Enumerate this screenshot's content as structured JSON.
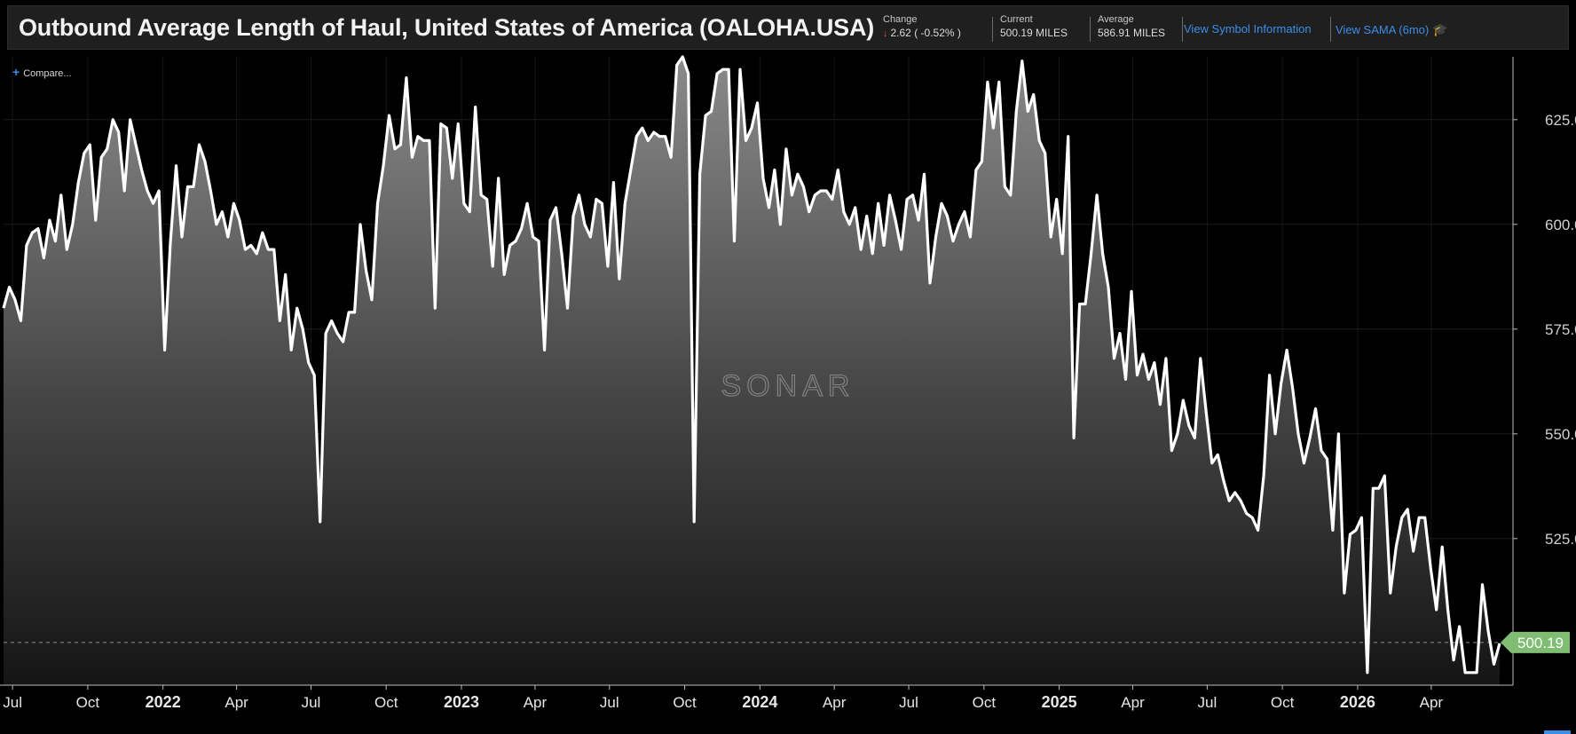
{
  "header": {
    "title": "Outbound Average Length of Haul, United States of America (OALOHA.USA)",
    "change_label": "Change",
    "change_value": "2.62 ( -0.52% )",
    "current_label": "Current",
    "current_value": "500.19 MILES",
    "average_label": "Average",
    "average_value": "586.91 MILES",
    "link_symbol": "View Symbol Information",
    "link_sama": "View SAMA (6mo)",
    "sama_icon": "graduation-cap-icon"
  },
  "compare_label": "Compare...",
  "watermark": "SONAR",
  "chart_data": {
    "type": "line",
    "title": "Outbound Average Length of Haul, United States of America (OALOHA.USA)",
    "unit": "MILES",
    "ylim": [
      490,
      640
    ],
    "yticks": [
      "625.00",
      "600.00",
      "575.00",
      "550.00",
      "525.00"
    ],
    "ytick_values": [
      625,
      600,
      575,
      550,
      525
    ],
    "xtick_labels": [
      "Jul",
      "Oct",
      "2022",
      "Apr",
      "Jul",
      "Oct",
      "2023",
      "Apr",
      "Jul",
      "Oct",
      "2024",
      "Apr",
      "Jul",
      "Oct",
      "2025",
      "Apr",
      "Jul",
      "Oct",
      "2026",
      "Apr"
    ],
    "xtick_dates": [
      "2021-07-01",
      "2021-10-01",
      "2022-01-01",
      "2022-04-01",
      "2022-07-01",
      "2022-10-01",
      "2023-01-01",
      "2023-04-01",
      "2023-07-01",
      "2023-10-01",
      "2024-01-01",
      "2024-04-01",
      "2024-07-01",
      "2024-10-01",
      "2025-01-01",
      "2025-04-01",
      "2025-07-01",
      "2025-10-01",
      "2026-01-01",
      "2026-04-01"
    ],
    "x_start": "2021-06-20",
    "x_end": "2026-07-10",
    "current_value": 500.19,
    "current_label": "500.19",
    "grid": true,
    "series": [
      {
        "values": [
          580,
          585,
          582,
          577,
          595,
          598,
          599,
          592,
          601,
          596,
          607,
          594,
          600,
          610,
          617,
          619,
          601,
          616,
          618,
          625,
          622,
          608,
          625,
          619,
          613,
          608,
          605,
          608,
          570,
          596,
          614,
          597,
          609,
          609,
          619,
          615,
          608,
          600,
          603,
          597,
          605,
          601,
          594,
          595,
          593,
          598,
          594,
          594,
          577,
          588,
          570,
          580,
          575,
          567,
          564,
          529,
          574,
          577,
          574,
          572,
          579,
          579,
          600,
          589,
          582,
          605,
          614,
          626,
          618,
          619,
          635,
          616,
          621,
          620,
          620,
          580,
          624,
          623,
          611,
          624,
          605,
          603,
          628,
          607,
          606,
          590,
          611,
          588,
          595,
          596,
          599,
          605,
          597,
          596,
          570,
          601,
          604,
          593,
          580,
          602,
          607,
          600,
          597,
          606,
          605,
          590,
          610,
          587,
          605,
          613,
          621,
          623,
          620,
          622,
          621,
          621,
          616,
          638,
          640,
          636,
          529,
          612,
          626,
          627,
          636,
          637,
          637,
          596,
          637,
          620,
          623,
          629,
          611,
          604,
          613,
          600,
          618,
          607,
          612,
          609,
          603,
          607,
          608,
          608,
          606,
          613,
          603,
          600,
          604,
          594,
          602,
          593,
          605,
          595,
          607,
          601,
          594,
          606,
          607,
          601,
          612,
          586,
          597,
          605,
          602,
          596,
          600,
          603,
          597,
          613,
          615,
          634,
          623,
          634,
          609,
          607,
          627,
          639,
          627,
          631,
          620,
          617,
          597,
          606,
          593,
          621,
          549,
          581,
          581,
          593,
          607,
          593,
          585,
          568,
          574,
          563,
          584,
          564,
          569,
          563,
          567,
          557,
          568,
          546,
          550,
          558,
          552,
          549,
          568,
          555,
          543,
          545,
          539,
          534,
          536,
          534,
          531,
          530,
          527,
          540,
          564,
          550,
          562,
          570,
          561,
          550,
          543,
          549,
          556,
          546,
          544,
          527,
          550,
          512,
          526,
          527,
          530,
          493,
          537,
          537,
          540,
          512,
          523,
          530,
          532,
          522,
          530,
          530,
          518,
          508,
          523,
          508,
          496,
          504,
          493,
          493,
          493,
          514,
          503,
          495,
          500
        ]
      }
    ]
  }
}
